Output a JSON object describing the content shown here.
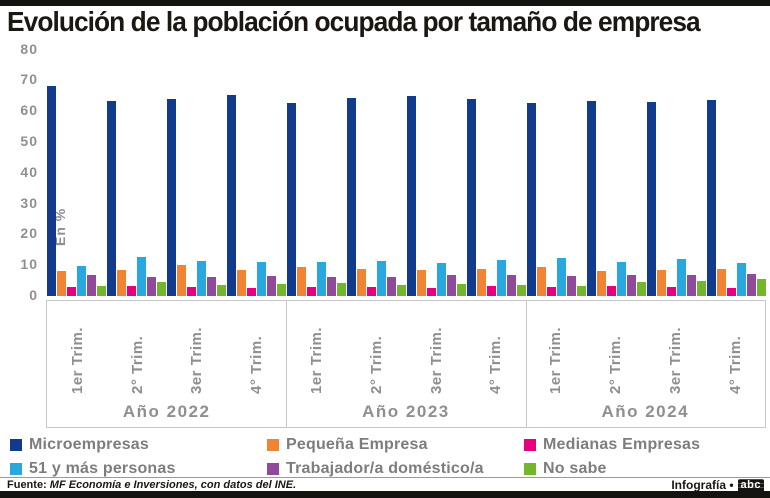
{
  "header": {
    "title": "Evolución de la población ocupada por tamaño de empresa"
  },
  "chart_data": {
    "type": "bar",
    "title": "Evolución de la población ocupada por tamaño de empresa",
    "xlabel": "",
    "ylabel": "En %",
    "ylim": [
      0,
      80
    ],
    "yticks": [
      0,
      10,
      20,
      30,
      40,
      50,
      60,
      70,
      80
    ],
    "grid": false,
    "legend_position": "bottom",
    "quarter_labels": [
      "1er Trim.",
      "2° Trim.",
      "3er Trim.",
      "4° Trim.",
      "1er Trim.",
      "2° Trim.",
      "3er Trim.",
      "4° Trim.",
      "1er Trim.",
      "2° Trim.",
      "3er Trim.",
      "4° Trim."
    ],
    "year_labels": [
      "Año 2022",
      "Año 2023",
      "Año 2024"
    ],
    "categories": [
      "1er Trim. Año 2022",
      "2° Trim. Año 2022",
      "3er Trim. Año 2022",
      "4° Trim. Año 2022",
      "1er Trim. Año 2023",
      "2° Trim. Año 2023",
      "3er Trim. Año 2023",
      "4° Trim. Año 2023",
      "1er Trim. Año 2024",
      "2° Trim. Año 2024",
      "3er Trim. Año 2024",
      "4° Trim. Año 2024"
    ],
    "series": [
      {
        "name": "Microempresas",
        "color": "#133b8d",
        "values": [
          68.3,
          63.5,
          64.0,
          65.2,
          62.8,
          64.2,
          64.9,
          63.9,
          62.6,
          63.5,
          63.1,
          63.6
        ]
      },
      {
        "name": "Pequeña Empresa",
        "color": "#f08433",
        "values": [
          8.0,
          8.6,
          10.2,
          8.3,
          9.5,
          8.8,
          8.4,
          8.7,
          9.4,
          8.2,
          8.5,
          8.7
        ]
      },
      {
        "name": "Medianas Empresas",
        "color": "#e6007e",
        "values": [
          2.9,
          3.1,
          2.8,
          2.5,
          3.0,
          2.8,
          2.6,
          3.2,
          2.8,
          3.4,
          2.9,
          2.7
        ]
      },
      {
        "name": "51 y más personas",
        "color": "#29a8e0",
        "values": [
          9.9,
          12.6,
          11.4,
          10.9,
          11.0,
          11.4,
          10.6,
          11.7,
          12.5,
          11.2,
          12.0,
          10.6
        ]
      },
      {
        "name": "Trabajador/a doméstico/a",
        "color": "#8f4a9b",
        "values": [
          6.9,
          6.1,
          6.3,
          6.6,
          6.2,
          6.3,
          6.7,
          6.9,
          6.5,
          6.9,
          6.9,
          7.1
        ]
      },
      {
        "name": "No sabe",
        "color": "#72b62c",
        "values": [
          3.1,
          4.4,
          3.6,
          3.9,
          4.2,
          3.6,
          4.0,
          3.6,
          3.4,
          4.4,
          5.0,
          5.6
        ]
      }
    ]
  },
  "footer": {
    "source_label": "Fuente:",
    "source_text": "MF Economía e Inversiones, con datos del INE.",
    "credit_label": "Infografía •",
    "logo_text": "abc"
  }
}
